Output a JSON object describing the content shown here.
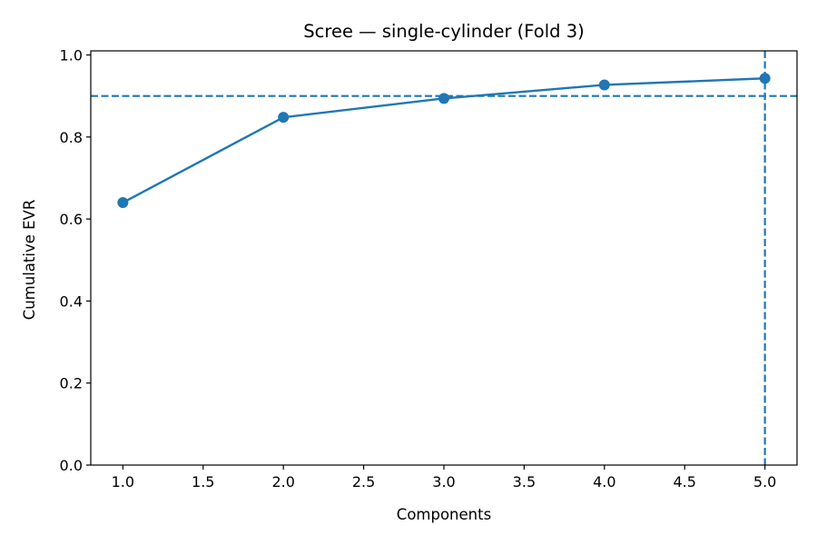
{
  "chart_data": {
    "type": "line",
    "title": "Scree — single-cylinder (Fold 3)",
    "xlabel": "Components",
    "ylabel": "Cumulative EVR",
    "x": [
      1,
      2,
      3,
      4,
      5
    ],
    "series": [
      {
        "values": [
          0.64,
          0.848,
          0.894,
          0.927,
          0.943
        ],
        "color": "#1f77b4",
        "marker": "circle"
      }
    ],
    "xlim": [
      0.8,
      5.2
    ],
    "ylim": [
      0.0,
      1.01
    ],
    "xticks": [
      1.0,
      1.5,
      2.0,
      2.5,
      3.0,
      3.5,
      4.0,
      4.5,
      5.0
    ],
    "xtick_labels": [
      "1.0",
      "1.5",
      "2.0",
      "2.5",
      "3.0",
      "3.5",
      "4.0",
      "4.5",
      "5.0"
    ],
    "yticks": [
      0.0,
      0.2,
      0.4,
      0.6,
      0.8,
      1.0
    ],
    "ytick_labels": [
      "0.0",
      "0.2",
      "0.4",
      "0.6",
      "0.8",
      "1.0"
    ],
    "reference_lines": [
      {
        "orientation": "horizontal",
        "value": 0.9,
        "style": "dashed",
        "color": "#1f77b4"
      },
      {
        "orientation": "vertical",
        "value": 5,
        "style": "dashed",
        "color": "#1f77b4"
      }
    ],
    "grid": false,
    "legend": "none"
  }
}
